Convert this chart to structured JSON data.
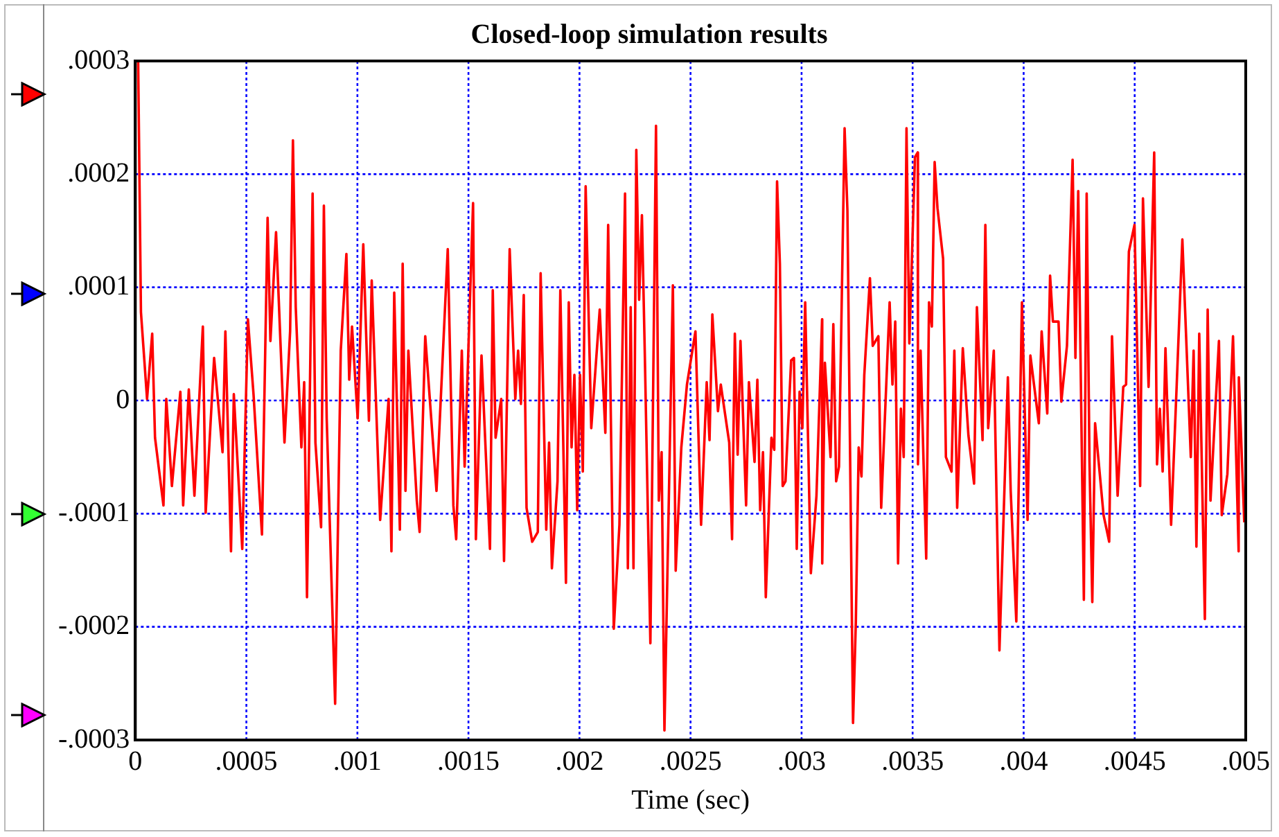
{
  "chart_data": {
    "type": "line",
    "title": "Closed-loop simulation results",
    "xlabel": "Time (sec)",
    "xlim": [
      0,
      0.005
    ],
    "xticks": [
      0,
      {
        "value": 0.0005,
        "label": ".0005"
      },
      {
        "value": 0.001,
        "label": ".001"
      },
      {
        "value": 0.0015,
        "label": ".0015"
      },
      {
        "value": 0.002,
        "label": ".002"
      },
      {
        "value": 0.0025,
        "label": ".0025"
      },
      {
        "value": 0.003,
        "label": ".003"
      },
      {
        "value": 0.0035,
        "label": ".0035"
      },
      {
        "value": 0.004,
        "label": ".004"
      },
      {
        "value": 0.0045,
        "label": ".0045"
      },
      {
        "value": 0.005,
        "label": ".005"
      }
    ],
    "ylim": [
      -0.0003,
      0.0003
    ],
    "yticks": [
      {
        "value": -0.0003,
        "label": "-.0003"
      },
      {
        "value": -0.0002,
        "label": "-.0002"
      },
      {
        "value": -0.0001,
        "label": "-.0001"
      },
      0,
      {
        "value": 0.0001,
        "label": ".0001"
      },
      {
        "value": 0.0002,
        "label": ".0002"
      },
      {
        "value": 0.0003,
        "label": ".0003"
      }
    ],
    "grid": true,
    "legend": false,
    "marker": "none",
    "line_style": "solid",
    "series": [
      {
        "color": "#ff0000",
        "x": [
          0,
          1.27e-05,
          2.53e-05,
          5.28e-05,
          7.6e-05,
          8.87e-05,
          0.0001267,
          0.0001394,
          0.0001647,
          0.0002028,
          0.0002154,
          0.0002408,
          0.0002661,
          0.0003041,
          0.0003168,
          0.0003548,
          0.0003928,
          0.0004055,
          0.0004308,
          0.0004435,
          0.0004815,
          0.0005069,
          0.0005322,
          0.0005702,
          0.0005956,
          0.0006083,
          0.0006336,
          0.0006716,
          0.000697,
          0.0007097,
          0.0007223,
          0.0007477,
          0.0007603,
          0.000773,
          0.0007983,
          0.000811,
          0.0008364,
          0.000849,
          0.0008617,
          0.0008997,
          0.000925,
          0.0009504,
          0.0009631,
          0.0009757,
          0.0010011,
          0.0010264,
          0.0010518,
          0.0010644,
          0.0011024,
          0.0011405,
          0.0011532,
          0.0011658,
          0.0011912,
          0.0012038,
          0.0012165,
          0.0012294,
          0.0012674,
          0.0012801,
          0.0013054,
          0.0013561,
          0.0014068,
          0.0014321,
          0.0014448,
          0.0014701,
          0.0014828,
          0.0015208,
          0.0015335,
          0.0015588,
          0.0015969,
          0.0016095,
          0.0016222,
          0.0016475,
          0.0016602,
          0.0016856,
          0.0017109,
          0.0017236,
          0.0017363,
          0.001749,
          0.0017616,
          0.001787,
          0.0018123,
          0.001825,
          0.0018503,
          0.001863,
          0.0018757,
          0.001901,
          0.0019137,
          0.001939,
          0.0019517,
          0.0019644,
          0.001977,
          0.0019897,
          0.0020024,
          0.002015,
          0.0020277,
          0.002053,
          0.0020911,
          0.0021164,
          0.0021291,
          0.0021544,
          0.0021798,
          0.0022051,
          0.0022178,
          0.0022305,
          0.0022431,
          0.0022558,
          0.0022685,
          0.0022811,
          0.0022938,
          0.0023192,
          0.0023445,
          0.0023572,
          0.0023698,
          0.0023825,
          0.0024205,
          0.0024332,
          0.0024585,
          0.0024839,
          0.0025221,
          0.0025475,
          0.0025728,
          0.0025855,
          0.0025982,
          0.0026235,
          0.0026362,
          0.0026742,
          0.0026869,
          0.0026995,
          0.0027122,
          0.0027249,
          0.0027502,
          0.0027629,
          0.0027882,
          0.0028009,
          0.0028136,
          0.0028262,
          0.0028389,
          0.0028643,
          0.0028769,
          0.0028896,
          0.0029023,
          0.0029149,
          0.0029276,
          0.002953,
          0.0029656,
          0.0029783,
          0.002991,
          0.0030036,
          0.0030163,
          0.0030417,
          0.003067,
          0.0030923,
          0.003093,
          0.003105,
          0.0031304,
          0.003143,
          0.0031557,
          0.0031684,
          0.0031937,
          0.0032064,
          0.0032317,
          0.0032444,
          0.0032571,
          0.0032697,
          0.0032824,
          0.0033078,
          0.0033204,
          0.0033458,
          0.0033585,
          0.0033965,
          0.0034092,
          0.0034218,
          0.0034345,
          0.0034472,
          0.0034599,
          0.0034725,
          0.0034852,
          0.0035105,
          0.0035232,
          0.003524,
          0.0035359,
          0.0035486,
          0.0035612,
          0.0035739,
          0.0035866,
          0.0035992,
          0.0036119,
          0.0036373,
          0.0036499,
          0.0036753,
          0.0036879,
          0.0037006,
          0.003726,
          0.0037513,
          0.0037768,
          0.0037895,
          0.0038149,
          0.0038275,
          0.0038402,
          0.0038655,
          0.0038909,
          0.0039036,
          0.0039289,
          0.0039416,
          0.0039669,
          0.0039923,
          0.0040176,
          0.0040303,
          0.0040683,
          0.004081,
          0.0041063,
          0.004119,
          0.0041317,
          0.004157,
          0.0041697,
          0.004195,
          0.0042204,
          0.0042331,
          0.0042457,
          0.0042711,
          0.0042837,
          0.0042964,
          0.0043091,
          0.0043217,
          0.0043598,
          0.0043851,
          0.0043978,
          0.0044231,
          0.0044485,
          0.0044611,
          0.0044738,
          0.0044991,
          0.0045245,
          0.0045372,
          0.0045625,
          0.0045878,
          0.0046005,
          0.0046132,
          0.0046259,
          0.0046385,
          0.0046639,
          0.0046892,
          0.0047146,
          0.0047526,
          0.0047653,
          0.0047779,
          0.0047906,
          0.0048159,
          0.0048286,
          0.0048413,
          0.0048793,
          0.004892,
          0.0049173,
          0.0049427,
          0.004968,
          0.004969,
          0.0049934
        ],
        "values": [
          0.0003,
          0.0003,
          7.82e-05,
          1.3e-06,
          5.9e-05,
          -3.29e-05,
          -9.27e-05,
          1.3e-06,
          -7.56e-05,
          7.7e-06,
          -9.27e-05,
          9.8e-06,
          -8.42e-05,
          6.54e-05,
          -9.91e-05,
          3.76e-05,
          -4.57e-05,
          6.11e-05,
          -0.0001333,
          5.6e-06,
          -0.0001312,
          7.18e-05,
          5.6e-06,
          -0.0001184,
          0.0001615,
          5.26e-05,
          0.0001487,
          -3.72e-05,
          6.11e-05,
          0.0002299,
          8.25e-05,
          -4.15e-05,
          1.62e-05,
          -0.0001739,
          0.0001829,
          -3.72e-05,
          -0.000112,
          0.0001722,
          -1.58e-05,
          -0.000268,
          4.4e-05,
          0.0001295,
          1.84e-05,
          6.54e-05,
          -1.58e-05,
          0.000138,
          -1.79e-05,
          0.000106,
          -0.0001056,
          1.3e-06,
          -0.0001333,
          9.53e-05,
          -0.0001141,
          0.0001209,
          -7.99e-05,
          4.4e-05,
          -8.85e-05,
          -0.0001162,
          5.68e-05,
          -7.99e-05,
          0.0001338,
          -9.27e-05,
          -0.0001226,
          4.4e-05,
          -5.85e-05,
          0.0001744,
          -0.0001226,
          3.97e-05,
          -0.0001312,
          9.74e-05,
          -3.29e-05,
          1.3e-06,
          -0.0001419,
          0.0001338,
          1.3e-06,
          4.4e-05,
          -3e-06,
          9.32e-05,
          -9.49e-05,
          -0.0001248,
          -0.0001162,
          0.0001124,
          -0.0001141,
          -3.72e-05,
          -0.0001483,
          -7.14e-05,
          9.74e-05,
          -0.0001611,
          8.68e-05,
          -4.15e-05,
          2.26e-05,
          -9.7e-05,
          2.26e-05,
          -6.28e-05,
          0.0001893,
          -2.44e-05,
          8.03e-05,
          -2.86e-05,
          0.0001551,
          -0.0002017,
          -0.0001098,
          0.0001829,
          -0.0001483,
          8.25e-05,
          -0.0001483,
          0.0002214,
          8.89e-05,
          0.0001637,
          4.4e-05,
          -0.0002145,
          0.0002427,
          -8.85e-05,
          -4.57e-05,
          -0.0002915,
          0.0001017,
          -0.0001504,
          -4.15e-05,
          1.41e-05,
          6.11e-05,
          -0.0001098,
          1.62e-05,
          -3.5e-05,
          7.61e-05,
          -9.4e-06,
          1.41e-05,
          -3.72e-05,
          -0.0001226,
          5.9e-05,
          -4.79e-05,
          5.26e-05,
          -9.27e-05,
          1.62e-05,
          -5.43e-05,
          1.84e-05,
          -9.7e-05,
          -4.57e-05,
          -0.0001739,
          -3.29e-05,
          -4.36e-05,
          0.0001936,
          0.0001209,
          -7.56e-05,
          -7.14e-05,
          3.55e-05,
          3.76e-05,
          -0.0001312,
          7.7e-06,
          -2.44e-05,
          8.68e-05,
          -0.0001526,
          -8.42e-05,
          7.18e-05,
          -0.000144,
          3.33e-05,
          -5e-05,
          6.75e-05,
          -7.14e-05,
          -5.85e-05,
          0.0002406,
          0.0001679,
          -0.000285,
          -0.0001953,
          -4.15e-05,
          -6.71e-05,
          2.26e-05,
          0.0001081,
          4.83e-05,
          5.68e-05,
          -9.49e-05,
          8.68e-05,
          1.41e-05,
          6.97e-05,
          -0.000144,
          -7.3e-06,
          -5e-05,
          0.0002406,
          5.04e-05,
          0.000215,
          0.0002192,
          -5.64e-05,
          4.4e-05,
          -5e-05,
          -0.0001397,
          8.68e-05,
          6.54e-05,
          0.0002107,
          0.0001701,
          0.0001252,
          -5e-05,
          -6.28e-05,
          4.4e-05,
          -9.49e-05,
          4.62e-05,
          -3.08e-05,
          -7.35e-05,
          8.25e-05,
          -3.5e-05,
          0.0001551,
          -2.44e-05,
          4.4e-05,
          -0.0002209,
          -0.0001419,
          2.05e-05,
          -7.99e-05,
          -0.0001953,
          8.68e-05,
          -0.0001056,
          3.97e-05,
          -2.01e-05,
          6.11e-05,
          -1.15e-05,
          0.0001103,
          6.97e-05,
          6.97e-05,
          -1e-06,
          4.83e-05,
          0.0002128,
          3.76e-05,
          0.000185,
          -0.0001761,
          0.0001829,
          -5.43e-05,
          -0.0001782,
          -2.01e-05,
          -0.0001013,
          -0.0001248,
          5.68e-05,
          -8.42e-05,
          1.2e-05,
          1.41e-05,
          0.0001316,
          0.0001551,
          -7.56e-05,
          0.0001786,
          1.2e-05,
          0.0002192,
          -5.64e-05,
          -7.3e-06,
          -6.28e-05,
          4.62e-05,
          -0.0001098,
          1.41e-05,
          0.0001423,
          -5e-05,
          4.4e-05,
          -0.0001291,
          5.9e-05,
          -0.0001932,
          8.03e-05,
          -8.85e-05,
          5.26e-05,
          -0.0001013,
          -6.5e-05,
          5.68e-05,
          -0.0001333,
          2.05e-05,
          -0.0001077
        ]
      }
    ]
  }
}
